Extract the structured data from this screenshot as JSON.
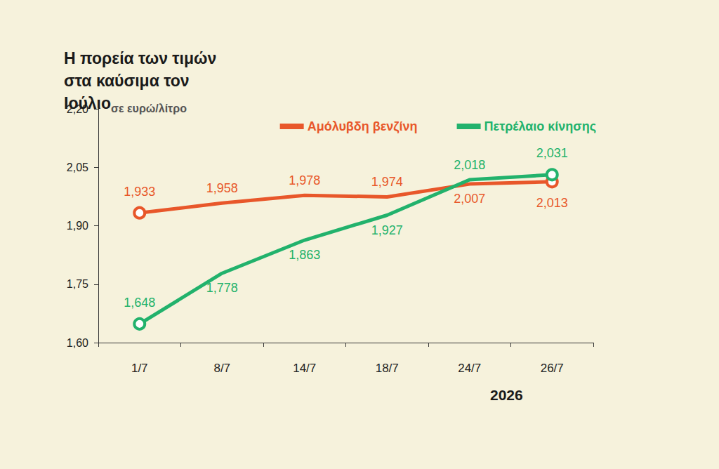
{
  "chart_data": {
    "type": "line",
    "title": "Η πορεία των τιμών στα καύσιμα τον Ιούλιο",
    "y_label": "σε ευρώ/λίτρο",
    "annotation": "2026",
    "categories": [
      "1/7",
      "8/7",
      "14/7",
      "18/7",
      "24/7",
      "26/7"
    ],
    "series": [
      {
        "name": "Αμόλυβδη βενζίνη",
        "color": "#e8572a",
        "values": [
          1.933,
          1.958,
          1.978,
          1.974,
          2.007,
          2.013
        ],
        "value_labels": [
          "1,933",
          "1,958",
          "1,978",
          "1,974",
          "2,007",
          "2,013"
        ]
      },
      {
        "name": "Πετρέλαιο κίνησης",
        "color": "#22b26c",
        "values": [
          1.648,
          1.778,
          1.863,
          1.927,
          2.018,
          2.031
        ],
        "value_labels": [
          "1,648",
          "1,778",
          "1,863",
          "1,927",
          "2,018",
          "2,031"
        ]
      }
    ],
    "ylim": [
      1.6,
      2.2
    ],
    "yticks": [
      {
        "value": 1.6,
        "label": "1,60"
      },
      {
        "value": 1.75,
        "label": "1,75"
      },
      {
        "value": 1.9,
        "label": "1,90"
      },
      {
        "value": 2.05,
        "label": "2,05"
      },
      {
        "value": 2.2,
        "label": "2,20"
      }
    ],
    "grid": false,
    "legend": "top-right",
    "data_labels": true,
    "marker": "hollow-circle-ends"
  }
}
